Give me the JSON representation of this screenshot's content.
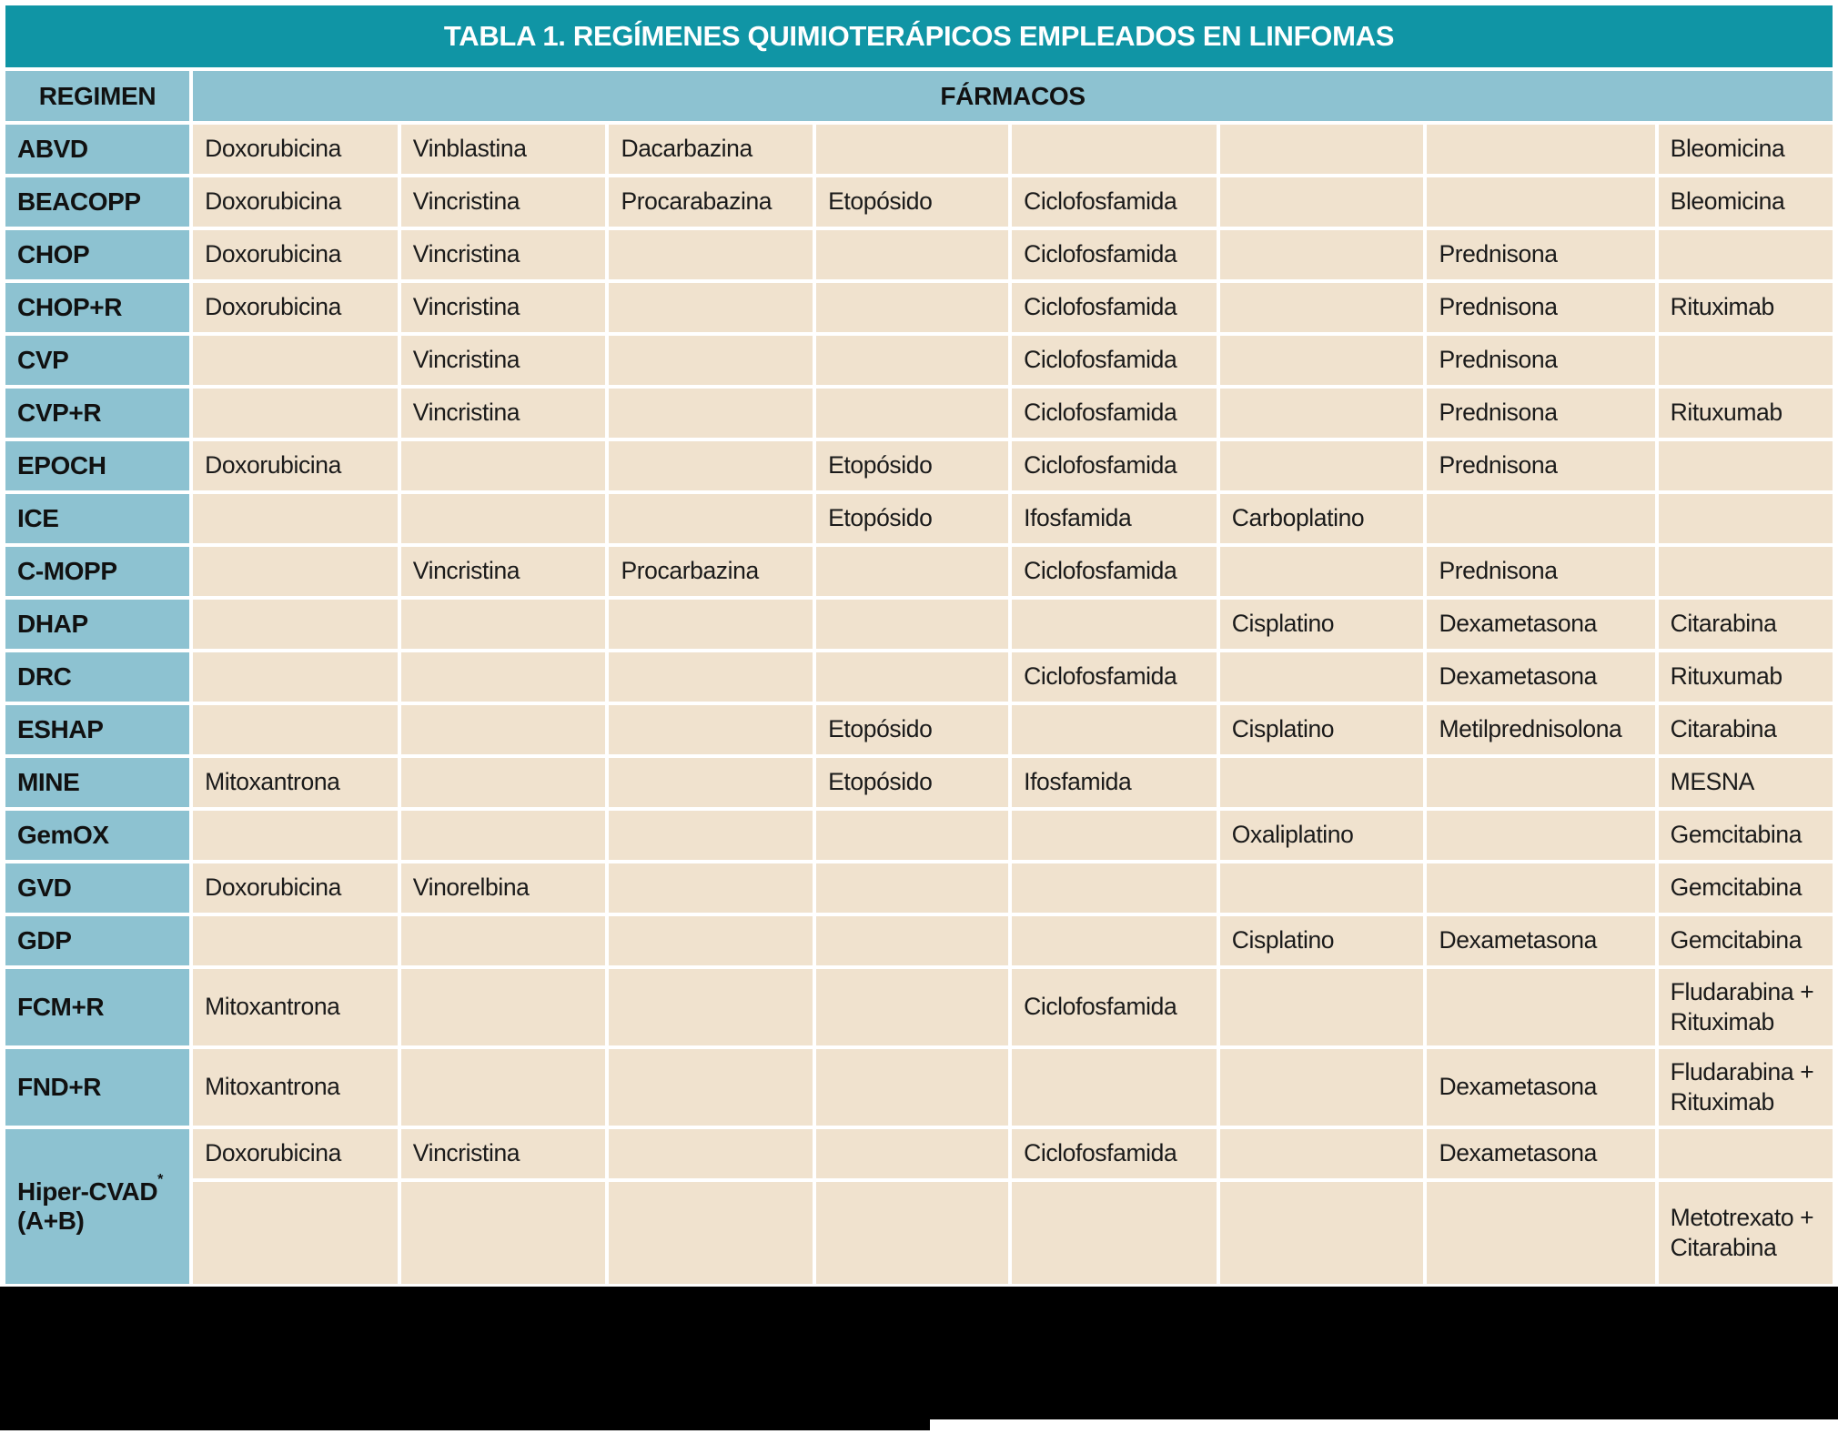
{
  "title": "TABLA 1. REGÍMENES QUIMIOTERÁPICOS EMPLEADOS EN LINFOMAS",
  "header": {
    "regimen": "REGIMEN",
    "drugs": "FÁRMACOS"
  },
  "colors": {
    "title_bg": "#1095A5",
    "title_text": "#FFFFFF",
    "header_bg": "#8DC2D1",
    "cell_bg": "#F0E2CE",
    "text": "#1A1A1A",
    "redaction": "#000000"
  },
  "table": {
    "num_drug_columns": 8,
    "rows": [
      {
        "regimen": "ABVD",
        "drugs": [
          "Doxorubicina",
          "Vinblastina",
          "Dacarbazina",
          "",
          "",
          "",
          "",
          "Bleomicina"
        ]
      },
      {
        "regimen": "BEACOPP",
        "drugs": [
          "Doxorubicina",
          "Vincristina",
          "Procarabazina",
          "Etopósido",
          "Ciclofosfamida",
          "",
          "",
          "Bleomicina"
        ]
      },
      {
        "regimen": "CHOP",
        "drugs": [
          "Doxorubicina",
          "Vincristina",
          "",
          "",
          "Ciclofosfamida",
          "",
          "Prednisona",
          ""
        ]
      },
      {
        "regimen": "CHOP+R",
        "drugs": [
          "Doxorubicina",
          "Vincristina",
          "",
          "",
          "Ciclofosfamida",
          "",
          "Prednisona",
          "Rituximab"
        ]
      },
      {
        "regimen": "CVP",
        "drugs": [
          "",
          "Vincristina",
          "",
          "",
          "Ciclofosfamida",
          "",
          "Prednisona",
          ""
        ]
      },
      {
        "regimen": "CVP+R",
        "drugs": [
          "",
          "Vincristina",
          "",
          "",
          "Ciclofosfamida",
          "",
          "Prednisona",
          "Rituxumab"
        ]
      },
      {
        "regimen": "EPOCH",
        "drugs": [
          "Doxorubicina",
          "",
          "",
          "Etopósido",
          "Ciclofosfamida",
          "",
          "Prednisona",
          ""
        ]
      },
      {
        "regimen": "ICE",
        "drugs": [
          "",
          "",
          "",
          "Etopósido",
          "Ifosfamida",
          "Carboplatino",
          "",
          ""
        ]
      },
      {
        "regimen": "C-MOPP",
        "drugs": [
          "",
          "Vincristina",
          "Procarbazina",
          "",
          "Ciclofosfamida",
          "",
          "Prednisona",
          ""
        ]
      },
      {
        "regimen": "DHAP",
        "drugs": [
          "",
          "",
          "",
          "",
          "",
          "Cisplatino",
          "Dexametasona",
          "Citarabina"
        ]
      },
      {
        "regimen": "DRC",
        "drugs": [
          "",
          "",
          "",
          "",
          "Ciclofosfamida",
          "",
          "Dexametasona",
          "Rituxumab"
        ]
      },
      {
        "regimen": "ESHAP",
        "drugs": [
          "",
          "",
          "",
          "Etopósido",
          "",
          "Cisplatino",
          "Metilprednisolona",
          "Citarabina"
        ]
      },
      {
        "regimen": "MINE",
        "drugs": [
          "Mitoxantrona",
          "",
          "",
          "Etopósido",
          "Ifosfamida",
          "",
          "",
          "MESNA"
        ]
      },
      {
        "regimen": "GemOX",
        "drugs": [
          "",
          "",
          "",
          "",
          "",
          "Oxaliplatino",
          "",
          "Gemcitabina"
        ]
      },
      {
        "regimen": "GVD",
        "drugs": [
          "Doxorubicina",
          "Vinorelbina",
          "",
          "",
          "",
          "",
          "",
          "Gemcitabina"
        ]
      },
      {
        "regimen": "GDP",
        "drugs": [
          "",
          "",
          "",
          "",
          "",
          "Cisplatino",
          "Dexametasona",
          "Gemcitabina"
        ]
      },
      {
        "regimen": "FCM+R",
        "drugs": [
          "Mitoxantrona",
          "",
          "",
          "",
          "Ciclofosfamida",
          "",
          "",
          "Fludarabina + Rituximab"
        ]
      },
      {
        "regimen": "FND+R",
        "drugs": [
          "Mitoxantrona",
          "",
          "",
          "",
          "",
          "",
          "Dexametasona",
          "Fludarabina + Rituximab"
        ]
      },
      {
        "regimen": "Hiper-CVAD",
        "regimen_sup": "*",
        "regimen_line2": "(A+B)",
        "subrows": [
          [
            "Doxorubicina",
            "Vincristina",
            "",
            "",
            "Ciclofosfamida",
            "",
            "Dexametasona",
            ""
          ],
          [
            "",
            "",
            "",
            "",
            "",
            "",
            "",
            "Metotrexato + Citarabina"
          ]
        ]
      }
    ]
  }
}
